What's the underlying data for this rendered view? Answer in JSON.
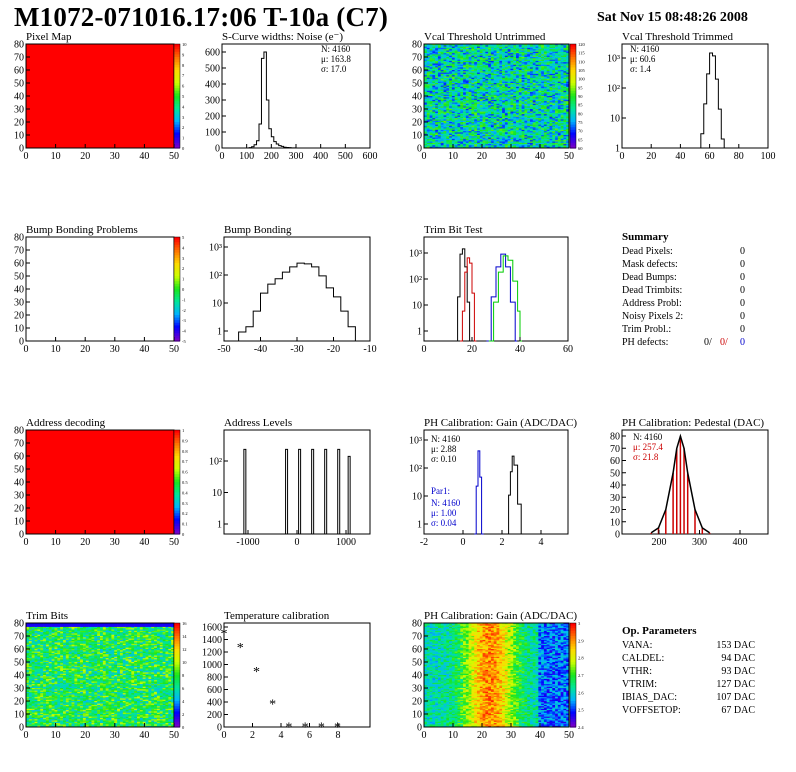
{
  "header": {
    "title": "M1072-071016.17:06 T-10a (C7)",
    "date": "Sat Nov 15 08:48:26 2008"
  },
  "panels": {
    "pixel_map": {
      "title": "Pixel Map",
      "xticks": [
        "0",
        "10",
        "20",
        "30",
        "40",
        "50"
      ],
      "yticks": [
        "0",
        "10",
        "20",
        "30",
        "40",
        "50",
        "60",
        "70",
        "80"
      ],
      "scale_labels": [
        "10",
        "9",
        "8",
        "7",
        "6",
        "5",
        "4",
        "3",
        "2",
        "1",
        "0"
      ]
    },
    "noise": {
      "title": "S-Curve widths: Noise (e⁻)",
      "stats": [
        "N: 4160",
        "μ: 163.8",
        "σ: 17.0"
      ],
      "xticks": [
        "0",
        "100",
        "200",
        "300",
        "400",
        "500",
        "600"
      ],
      "yticks": [
        "0",
        "100",
        "200",
        "300",
        "400",
        "500",
        "600"
      ]
    },
    "vcal_untrimmed": {
      "title": "Vcal Threshold Untrimmed",
      "xticks": [
        "0",
        "10",
        "20",
        "30",
        "40",
        "50"
      ],
      "yticks": [
        "0",
        "10",
        "20",
        "30",
        "40",
        "50",
        "60",
        "70",
        "80"
      ],
      "scale_labels": [
        "120",
        "115",
        "110",
        "105",
        "100",
        "95",
        "90",
        "85",
        "80",
        "75",
        "70",
        "65",
        "60"
      ]
    },
    "vcal_trimmed": {
      "title": "Vcal Threshold Trimmed",
      "stats": [
        "N: 4160",
        "μ: 60.6",
        "σ:  1.4"
      ],
      "xticks": [
        "0",
        "20",
        "40",
        "60",
        "80",
        "100"
      ],
      "yticks": [
        "1",
        "10",
        "10²",
        "10³"
      ]
    },
    "bump_problems": {
      "title": "Bump Bonding Problems",
      "xticks": [
        "0",
        "10",
        "20",
        "30",
        "40",
        "50"
      ],
      "yticks": [
        "0",
        "10",
        "20",
        "30",
        "40",
        "50",
        "60",
        "70",
        "80"
      ],
      "scale_labels": [
        "5",
        "4",
        "3",
        "2",
        "1",
        "0",
        "-1",
        "-2",
        "-3",
        "-4",
        "-5"
      ]
    },
    "bump_bonding": {
      "title": "Bump Bonding",
      "xticks": [
        "-50",
        "-40",
        "-30",
        "-20",
        "-10"
      ],
      "yticks": [
        "1",
        "10",
        "10²",
        "10³"
      ]
    },
    "trim_bit_test": {
      "title": "Trim Bit Test",
      "xticks": [
        "0",
        "20",
        "40",
        "60"
      ],
      "yticks": [
        "1",
        "10",
        "10²",
        "10³"
      ]
    },
    "summary": {
      "title": "Summary",
      "rows": [
        {
          "label": "Dead Pixels:",
          "value": "0"
        },
        {
          "label": "Mask defects:",
          "value": "0"
        },
        {
          "label": "Dead Bumps:",
          "value": "0"
        },
        {
          "label": "Dead Trimbits:",
          "value": "0"
        },
        {
          "label": "Address Probl:",
          "value": "0"
        },
        {
          "label": "Noisy Pixels 2:",
          "value": "0"
        },
        {
          "label": "Trim Probl.:",
          "value": "0"
        }
      ],
      "ph_label": "PH defects:",
      "ph_values": [
        "0/",
        "0/",
        "0"
      ]
    },
    "address_decoding": {
      "title": "Address decoding",
      "xticks": [
        "0",
        "10",
        "20",
        "30",
        "40",
        "50"
      ],
      "yticks": [
        "0",
        "10",
        "20",
        "30",
        "40",
        "50",
        "60",
        "70",
        "80"
      ],
      "scale_labels": [
        "1",
        "0.9",
        "0.8",
        "0.7",
        "0.6",
        "0.5",
        "0.4",
        "0.3",
        "0.2",
        "0.1",
        "0"
      ]
    },
    "address_levels": {
      "title": "Address Levels",
      "xticks": [
        "-1000",
        "0",
        "1000"
      ],
      "yticks": [
        "1",
        "10",
        "10²"
      ]
    },
    "ph_gain": {
      "title": "PH Calibration: Gain (ADC/DAC)",
      "stats": [
        "N: 4160",
        "μ: 2.88",
        "σ: 0.10"
      ],
      "par1": [
        "Par1:",
        "N: 4160",
        "μ: 1.00",
        "σ: 0.04"
      ],
      "xticks": [
        "-2",
        "0",
        "2",
        "4"
      ],
      "yticks": [
        "1",
        "10",
        "10²",
        "10³"
      ]
    },
    "ph_pedestal": {
      "title": "PH Calibration: Pedestal (DAC)",
      "stats": [
        "N: 4160",
        "μ: 257.4",
        "σ: 21.8"
      ],
      "xticks": [
        "200",
        "300",
        "400"
      ],
      "yticks": [
        "0",
        "10",
        "20",
        "30",
        "40",
        "50",
        "60",
        "70",
        "80"
      ]
    },
    "trim_bits": {
      "title": "Trim Bits",
      "xticks": [
        "0",
        "10",
        "20",
        "30",
        "40",
        "50"
      ],
      "yticks": [
        "0",
        "10",
        "20",
        "30",
        "40",
        "50",
        "60",
        "70",
        "80"
      ],
      "scale_labels": [
        "16",
        "14",
        "12",
        "10",
        "8",
        "6",
        "4",
        "2",
        "0"
      ]
    },
    "temperature": {
      "title": "Temperature calibration",
      "xticks": [
        "0",
        "2",
        "4",
        "6",
        "8"
      ],
      "yticks": [
        "0",
        "200",
        "400",
        "600",
        "800",
        "1000",
        "1200",
        "1400",
        "1600"
      ]
    },
    "ph_gain_map": {
      "title": "PH Calibration: Gain (ADC/DAC)",
      "xticks": [
        "0",
        "10",
        "20",
        "30",
        "40",
        "50"
      ],
      "yticks": [
        "0",
        "10",
        "20",
        "30",
        "40",
        "50",
        "60",
        "70",
        "80"
      ],
      "scale_labels": [
        "3",
        "2.9",
        "2.8",
        "2.7",
        "2.6",
        "2.5",
        "2.4"
      ]
    },
    "op_params": {
      "title": "Op. Parameters",
      "rows": [
        {
          "label": "VANA:",
          "value": "153 DAC"
        },
        {
          "label": "CALDEL:",
          "value": "94 DAC"
        },
        {
          "label": "VTHR:",
          "value": "93 DAC"
        },
        {
          "label": "VTRIM:",
          "value": "127 DAC"
        },
        {
          "label": "IBIAS_DAC:",
          "value": "107 DAC"
        },
        {
          "label": "VOFFSETOP:",
          "value": "67 DAC"
        }
      ]
    }
  },
  "chart_data": [
    {
      "type": "heatmap",
      "title": "Pixel Map",
      "xlim": [
        0,
        52
      ],
      "ylim": [
        0,
        80
      ],
      "zlim": [
        0,
        10
      ],
      "uniform_value": 10
    },
    {
      "type": "line",
      "title": "S-Curve widths: Noise (e⁻)",
      "xlim": [
        0,
        600
      ],
      "ylim": [
        0,
        650
      ],
      "x": [
        100,
        110,
        120,
        130,
        140,
        150,
        160,
        170,
        180,
        190,
        200,
        210,
        220,
        230,
        240,
        250,
        260,
        270,
        280,
        300
      ],
      "y": [
        0,
        2,
        8,
        20,
        45,
        150,
        560,
        600,
        300,
        120,
        70,
        40,
        25,
        15,
        10,
        5,
        3,
        2,
        1,
        0
      ]
    },
    {
      "type": "heatmap",
      "title": "Vcal Threshold Untrimmed",
      "xlim": [
        0,
        52
      ],
      "ylim": [
        0,
        80
      ],
      "zlim": [
        60,
        120
      ]
    },
    {
      "type": "line",
      "title": "Vcal Threshold Trimmed",
      "xlim": [
        0,
        100
      ],
      "ylim": [
        1,
        3000
      ],
      "log_y": true,
      "x": [
        52,
        54,
        56,
        58,
        60,
        62,
        64,
        66,
        68,
        70
      ],
      "y": [
        1,
        3,
        30,
        300,
        1500,
        1200,
        200,
        20,
        2,
        1
      ]
    },
    {
      "type": "heatmap",
      "title": "Bump Bonding Problems",
      "xlim": [
        0,
        52
      ],
      "ylim": [
        0,
        80
      ],
      "zlim": [
        -5,
        5
      ],
      "uniform_value": 0
    },
    {
      "type": "line",
      "title": "Bump Bonding",
      "xlim": [
        -50,
        -10
      ],
      "ylim": [
        1,
        3000
      ],
      "log_y": true,
      "x": [
        -48,
        -46,
        -44,
        -42,
        -40,
        -38,
        -36,
        -34,
        -32,
        -30,
        -28,
        -26,
        -24,
        -22,
        -20,
        -18,
        -16,
        -14
      ],
      "y": [
        1,
        2,
        3,
        10,
        40,
        80,
        120,
        200,
        300,
        400,
        380,
        300,
        150,
        60,
        30,
        10,
        3,
        1
      ]
    },
    {
      "type": "line",
      "title": "Trim Bit Test",
      "xlim": [
        0,
        60
      ],
      "ylim": [
        1,
        3000
      ],
      "log_y": true,
      "series": [
        {
          "color": "#000000",
          "x": [
            13,
            14,
            15,
            16,
            17,
            18,
            19
          ],
          "y": [
            1,
            30,
            800,
            1200,
            300,
            20,
            1
          ]
        },
        {
          "color": "#cc0000",
          "x": [
            15,
            16,
            17,
            18,
            19,
            20,
            21
          ],
          "y": [
            1,
            10,
            200,
            600,
            400,
            40,
            1
          ]
        },
        {
          "color": "#0000cc",
          "x": [
            26,
            28,
            30,
            32,
            34,
            36,
            38
          ],
          "y": [
            1,
            30,
            300,
            800,
            300,
            20,
            1
          ]
        },
        {
          "color": "#00cc00",
          "x": [
            27,
            29,
            31,
            33,
            35,
            37,
            39,
            40
          ],
          "y": [
            1,
            20,
            200,
            700,
            500,
            100,
            10,
            1
          ]
        }
      ]
    },
    {
      "type": "heatmap",
      "title": "Address decoding",
      "xlim": [
        0,
        52
      ],
      "ylim": [
        0,
        80
      ],
      "zlim": [
        0,
        1
      ],
      "uniform_value": 1
    },
    {
      "type": "bar",
      "title": "Address Levels",
      "xlim": [
        -1400,
        1400
      ],
      "ylim": [
        1,
        1000
      ],
      "log_y": true,
      "x": [
        -1000,
        -200,
        50,
        300,
        550,
        800,
        1000
      ],
      "y": [
        500,
        500,
        500,
        500,
        500,
        500,
        300
      ]
    },
    {
      "type": "line",
      "title": "PH Calibration: Gain (ADC/DAC)",
      "xlim": [
        -2,
        6
      ],
      "ylim": [
        1,
        3000
      ],
      "log_y": true,
      "series": [
        {
          "color": "#0000cc",
          "x": [
            0.8,
            0.9,
            1.0,
            1.1,
            1.2
          ],
          "y": [
            1,
            40,
            600,
            80,
            1
          ]
        },
        {
          "color": "#000000",
          "x": [
            2.5,
            2.7,
            2.8,
            2.9,
            3.0,
            3.2,
            3.4
          ],
          "y": [
            1,
            20,
            120,
            400,
            200,
            10,
            1
          ]
        }
      ]
    },
    {
      "type": "bar",
      "title": "PH Calibration: Pedestal (DAC)",
      "xlim": [
        100,
        500
      ],
      "ylim": [
        0,
        85
      ],
      "x": [
        180,
        200,
        220,
        240,
        250,
        260,
        270,
        280,
        300,
        320,
        340
      ],
      "y": [
        1,
        5,
        20,
        50,
        70,
        80,
        70,
        50,
        20,
        5,
        1
      ]
    },
    {
      "type": "heatmap",
      "title": "Trim Bits",
      "xlim": [
        0,
        52
      ],
      "ylim": [
        0,
        80
      ],
      "zlim": [
        0,
        16
      ]
    },
    {
      "type": "scatter",
      "title": "Temperature calibration",
      "xlim": [
        0,
        9
      ],
      "ylim": [
        0,
        1650
      ],
      "x": [
        0,
        1,
        2,
        3,
        4,
        5,
        6,
        7
      ],
      "y": [
        1490,
        1270,
        890,
        370,
        10,
        10,
        10,
        10
      ]
    },
    {
      "type": "heatmap",
      "title": "PH Calibration: Gain (ADC/DAC)",
      "xlim": [
        0,
        52
      ],
      "ylim": [
        0,
        80
      ],
      "zlim": [
        2.4,
        3
      ]
    }
  ]
}
